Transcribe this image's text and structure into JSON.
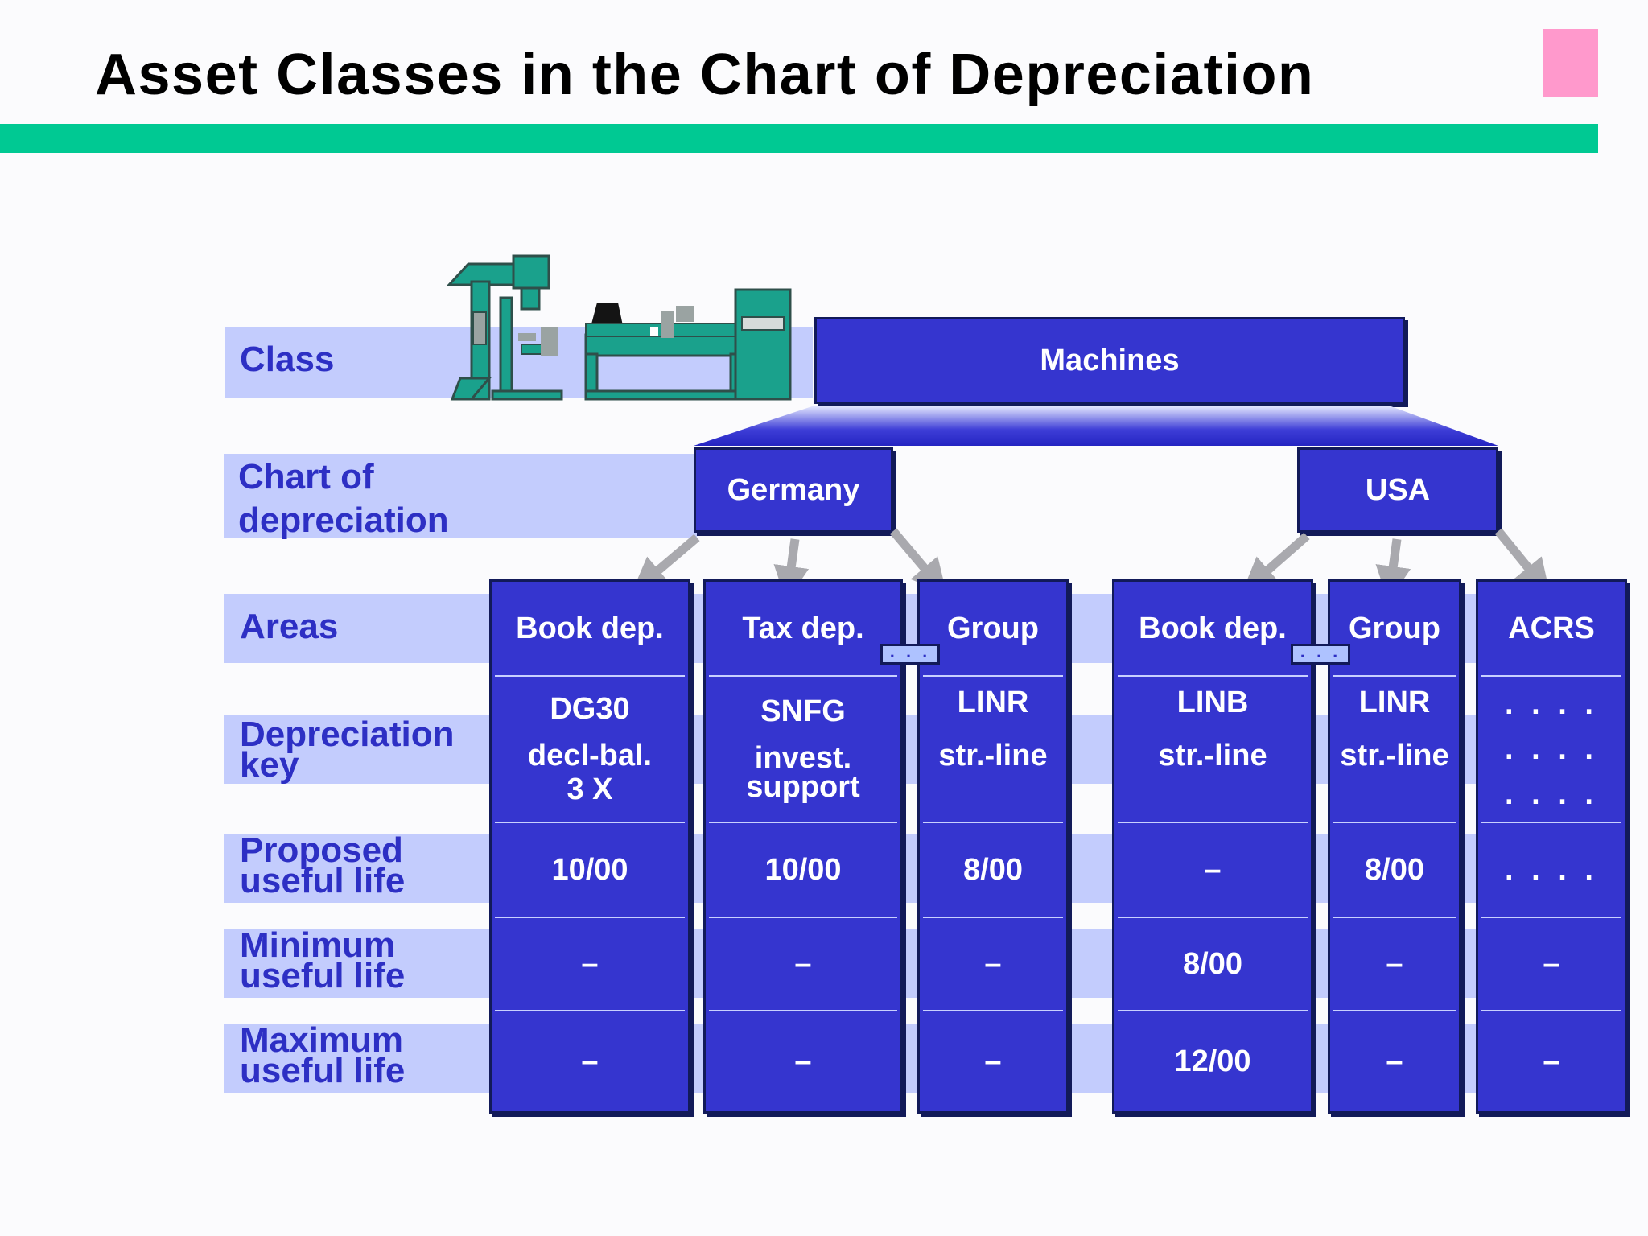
{
  "title": "Asset Classes in the Chart of Depreciation",
  "colors": {
    "accent_bar": "#00c993",
    "corner_marker": "#ff99cc",
    "box_fill": "#3535cf",
    "band_fill": "#c3ccfd",
    "label_text": "#2d2fc4"
  },
  "row_labels": {
    "class": "Class",
    "chart": "Chart of\ndepreciation",
    "areas": "Areas",
    "key": "Depreciation\nkey",
    "proposed": "Proposed\nuseful life",
    "minimum": "Minimum\nuseful life",
    "maximum": "Maximum\nuseful life"
  },
  "class_box": "Machines",
  "illustration": "lathe-machine-icon",
  "charts": [
    "Germany",
    "USA"
  ],
  "connector_label": ". . .",
  "columns": [
    {
      "area": "Book dep.",
      "key_lines": [
        "DG30",
        "decl-bal.",
        "3 X"
      ],
      "proposed": "10/00",
      "minimum": "–",
      "maximum": "–"
    },
    {
      "area": "Tax dep.",
      "key_lines": [
        "SNFG",
        "invest.",
        "support"
      ],
      "proposed": "10/00",
      "minimum": "–",
      "maximum": "–"
    },
    {
      "area": "Group",
      "key_lines": [
        "LINR",
        "str.-line"
      ],
      "proposed": "8/00",
      "minimum": "–",
      "maximum": "–"
    },
    {
      "area": "Book dep.",
      "key_lines": [
        "LINB",
        "str.-line"
      ],
      "proposed": "–",
      "minimum": "8/00",
      "maximum": "12/00"
    },
    {
      "area": "Group",
      "key_lines": [
        "LINR",
        "str.-line"
      ],
      "proposed": "8/00",
      "minimum": "–",
      "maximum": "–"
    },
    {
      "area": "ACRS",
      "key_lines": [
        ". . . .",
        ". . . .",
        ". . . ."
      ],
      "proposed": ". . . .",
      "minimum": "–",
      "maximum": "–"
    }
  ]
}
